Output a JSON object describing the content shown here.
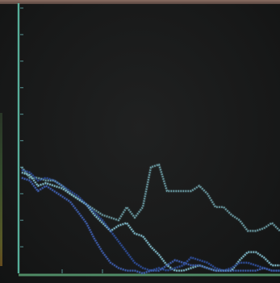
{
  "chart_data": {
    "type": "line",
    "title": "",
    "xlabel": "",
    "ylabel": "",
    "xlim": [
      0,
      32
    ],
    "ylim": [
      0,
      100
    ],
    "y_ticks": [
      10,
      20,
      30,
      40,
      50,
      60,
      70,
      80,
      90,
      100
    ],
    "x_ticks": [
      5,
      10
    ],
    "grid": false,
    "colors": {
      "axis": "#5fbfa8",
      "x_axis": "#5aa074",
      "tick": "#5a9a9a"
    },
    "series": [
      {
        "color": "#6a9aa2",
        "x": [
          0,
          1,
          2,
          3,
          4,
          5,
          6,
          7,
          8,
          9,
          10,
          11,
          12,
          13,
          14,
          15,
          16,
          17,
          18,
          19,
          20,
          21,
          22,
          23,
          24,
          25,
          26,
          27,
          28,
          29,
          30,
          31,
          32
        ],
        "y": [
          40,
          36,
          36,
          35,
          35,
          33,
          30,
          28,
          26,
          24,
          22,
          21,
          20,
          25,
          21,
          25,
          40,
          41,
          31,
          31,
          31,
          31,
          33,
          30,
          25,
          25,
          22,
          20,
          16,
          16,
          17,
          19,
          16
        ]
      },
      {
        "color": "#7eb8c8",
        "x": [
          0,
          1,
          2,
          3,
          4,
          5,
          6,
          7,
          8,
          9,
          10,
          11,
          12,
          13,
          14,
          15,
          16,
          17,
          18,
          19,
          20,
          21,
          22,
          23,
          24,
          25,
          26,
          27,
          28,
          29,
          30,
          31,
          32
        ],
        "y": [
          38,
          37,
          33,
          34,
          33,
          32,
          30,
          28,
          26,
          22,
          19,
          16,
          18,
          19,
          15,
          14,
          10,
          7,
          3,
          1,
          1,
          2,
          3,
          2,
          1,
          1,
          1,
          5,
          8,
          8,
          6,
          3,
          3
        ]
      },
      {
        "color": "#2e4e9a",
        "x": [
          0,
          1,
          2,
          3,
          4,
          5,
          6,
          7,
          8,
          9,
          10,
          11,
          12,
          13,
          14,
          15,
          16,
          17,
          18,
          19,
          20,
          21,
          22,
          23,
          24,
          25,
          26,
          27,
          28,
          29,
          30,
          31,
          32
        ],
        "y": [
          39,
          38,
          35,
          36,
          35,
          33,
          31,
          29,
          26,
          23,
          20,
          16,
          12,
          8,
          4,
          2,
          1,
          2,
          1,
          2,
          3,
          6,
          5,
          4,
          2,
          1,
          2,
          4,
          4,
          3,
          2,
          1,
          1
        ]
      },
      {
        "color": "#3e5eae",
        "x": [
          0,
          1,
          2,
          3,
          4,
          5,
          6,
          7,
          8,
          9,
          10,
          11,
          12,
          13,
          14,
          15,
          16,
          17,
          18,
          19,
          20,
          21,
          22,
          23,
          24,
          25,
          26,
          27,
          28,
          29,
          30,
          31,
          32
        ],
        "y": [
          36,
          35,
          31,
          33,
          31,
          29,
          27,
          23,
          19,
          13,
          8,
          4,
          2,
          1,
          1,
          0,
          1,
          1,
          3,
          5,
          4,
          3,
          3,
          2,
          1,
          1,
          1,
          1,
          1,
          1,
          2,
          1,
          1
        ]
      }
    ]
  }
}
